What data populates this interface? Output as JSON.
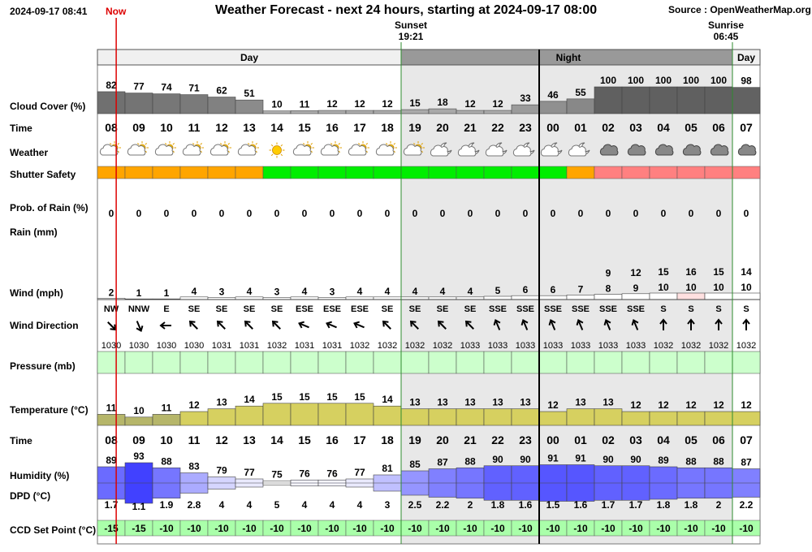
{
  "header": {
    "timestamp": "2024-09-17 08:41",
    "now_label": "Now",
    "title": "Weather Forecast - next 24 hours, starting at 2024-09-17 08:00",
    "source": "Source : OpenWeatherMap.org"
  },
  "sun_events": {
    "sunset_label": "Sunset",
    "sunset_time": "19:21",
    "sunrise_label": "Sunrise",
    "sunrise_time": "06:45"
  },
  "periods": {
    "day_label": "Day",
    "night_label": "Night"
  },
  "row_labels": {
    "cloud": "Cloud Cover (%)",
    "time": "Time",
    "weather": "Weather",
    "shutter": "Shutter Safety",
    "rain_prob": "Prob. of Rain (%)",
    "rain": "Rain (mm)",
    "wind": "Wind (mph)",
    "wind_dir": "Wind Direction",
    "pressure": "Pressure (mb)",
    "temperature": "Temperature (°C)",
    "time2": "Time",
    "humidity": "Humidity (%)",
    "dpd": "DPD (°C)",
    "ccd": "CCD Set Point (°C)"
  },
  "chart_data": {
    "type": "table",
    "hours": [
      "08",
      "09",
      "10",
      "11",
      "12",
      "13",
      "14",
      "15",
      "16",
      "17",
      "18",
      "19",
      "20",
      "21",
      "22",
      "23",
      "00",
      "01",
      "02",
      "03",
      "04",
      "05",
      "06",
      "07"
    ],
    "cloud_cover": [
      82,
      77,
      74,
      71,
      62,
      51,
      10,
      11,
      12,
      12,
      12,
      15,
      18,
      12,
      12,
      33,
      46,
      55,
      100,
      100,
      100,
      100,
      100,
      98
    ],
    "weather_icons": [
      "partly-cloudy-day-icon",
      "partly-cloudy-day-icon",
      "partly-cloudy-day-icon",
      "partly-cloudy-day-icon",
      "partly-cloudy-day-icon",
      "partly-cloudy-day-icon",
      "sun-icon",
      "partly-cloudy-day-icon",
      "partly-cloudy-day-icon",
      "partly-cloudy-day-icon",
      "partly-cloudy-day-icon",
      "partly-cloudy-day-icon",
      "partly-cloudy-night-icon",
      "partly-cloudy-night-icon",
      "partly-cloudy-night-icon",
      "partly-cloudy-night-icon",
      "partly-cloudy-night-icon",
      "partly-cloudy-night-icon",
      "cloud-icon",
      "cloud-icon",
      "cloud-icon",
      "cloud-icon",
      "cloud-icon",
      "cloud-icon"
    ],
    "shutter_safety": [
      "caution",
      "caution",
      "caution",
      "caution",
      "caution",
      "caution",
      "safe",
      "safe",
      "safe",
      "safe",
      "safe",
      "safe",
      "safe",
      "safe",
      "safe",
      "safe",
      "safe",
      "caution",
      "unsafe",
      "unsafe",
      "unsafe",
      "unsafe",
      "unsafe",
      "unsafe"
    ],
    "rain_probability": [
      0,
      0,
      0,
      0,
      0,
      0,
      0,
      0,
      0,
      0,
      0,
      0,
      0,
      0,
      0,
      0,
      0,
      0,
      0,
      0,
      0,
      0,
      0,
      0
    ],
    "rain_mm": [
      0,
      0,
      0,
      0,
      0,
      0,
      0,
      0,
      0,
      0,
      0,
      0,
      0,
      0,
      0,
      0,
      0,
      0,
      0,
      0,
      0,
      0,
      0,
      0
    ],
    "wind_speed": [
      2,
      1,
      1,
      4,
      3,
      4,
      3,
      4,
      3,
      4,
      4,
      4,
      4,
      4,
      5,
      6,
      6,
      7,
      8,
      9,
      10,
      10,
      10,
      10
    ],
    "wind_gust": [
      null,
      null,
      null,
      null,
      null,
      null,
      null,
      null,
      null,
      null,
      null,
      null,
      null,
      null,
      null,
      null,
      null,
      null,
      9,
      12,
      15,
      16,
      15,
      14
    ],
    "wind_direction": [
      "NW",
      "NNW",
      "E",
      "SE",
      "SE",
      "SE",
      "SE",
      "ESE",
      "ESE",
      "ESE",
      "SE",
      "SE",
      "SE",
      "SE",
      "SSE",
      "SSE",
      "SSE",
      "SSE",
      "SSE",
      "SSE",
      "S",
      "S",
      "S",
      "S"
    ],
    "pressure": [
      1030,
      1030,
      1030,
      1030,
      1031,
      1031,
      1032,
      1031,
      1031,
      1032,
      1032,
      1032,
      1032,
      1033,
      1033,
      1033,
      1033,
      1033,
      1033,
      1033,
      1032,
      1032,
      1032,
      1032
    ],
    "temperature": [
      11,
      10,
      11,
      12,
      13,
      14,
      15,
      15,
      15,
      15,
      14,
      13,
      13,
      13,
      13,
      13,
      12,
      13,
      13,
      12,
      12,
      12,
      12,
      12
    ],
    "humidity": [
      89,
      93,
      88,
      83,
      79,
      77,
      75,
      76,
      76,
      77,
      81,
      85,
      87,
      88,
      90,
      90,
      91,
      91,
      90,
      90,
      89,
      88,
      88,
      87
    ],
    "dpd": [
      1.7,
      1.1,
      1.9,
      2.8,
      4,
      4,
      5,
      4,
      4,
      4,
      3,
      2.5,
      2.2,
      2.0,
      1.8,
      1.6,
      1.5,
      1.6,
      1.7,
      1.7,
      1.8,
      1.8,
      2.0,
      2.2
    ],
    "ccd_set_point": [
      -15,
      -15,
      -10,
      -10,
      -10,
      -10,
      -10,
      -10,
      -10,
      -10,
      -10,
      -10,
      -10,
      -10,
      -10,
      -10,
      -10,
      -10,
      -10,
      -10,
      -10,
      -10,
      -10,
      -10
    ],
    "sunset_after_hour_index": 11,
    "sunrise_after_hour_index": 23,
    "night_start_hour_index": 16,
    "now_hour_fraction": 0.68
  },
  "colors": {
    "safe": "#00ee00",
    "caution": "#ffa500",
    "unsafe": "#ff8080",
    "night_shade": "#e8e8e8",
    "header_night": "#999999",
    "ccd_fill": "#aaffaa",
    "pressure_fill": "#ccffcc",
    "temp_cool": "#b6b66a",
    "temp_warm": "#d6d060",
    "now_line": "#dd0000",
    "sun_line": "#2e8b2e"
  }
}
